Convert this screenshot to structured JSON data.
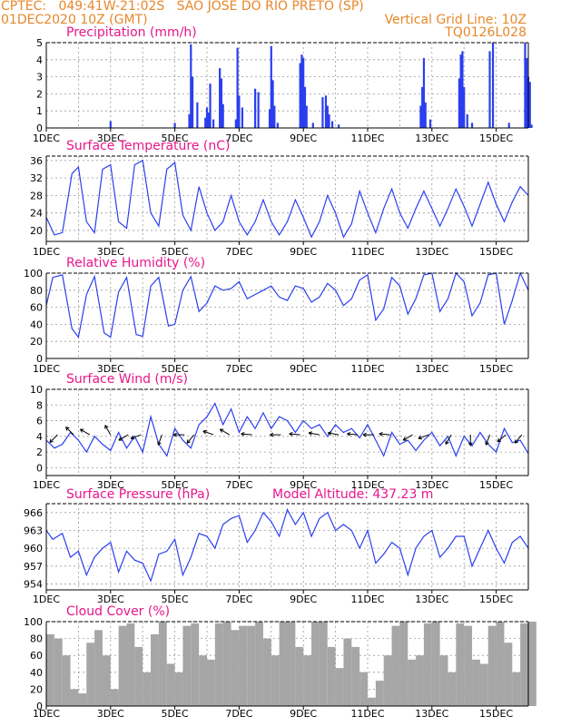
{
  "header": {
    "line1": "CPTEC:   049:41W-21:02S   SAO JOSE DO RIO PRETO (SP)",
    "line2_left": "01DEC2020 10Z (GMT)",
    "line2_right": "Vertical Grid Line: 10Z",
    "line3_right": "TQ0126L028",
    "model_altitude": "Model Altitude: 437.23 m"
  },
  "colors": {
    "header": "#e8872a",
    "title": "#e8168a",
    "series": "#2b3ff0",
    "cloud": "#a6a6a6",
    "grid": "#9a9a9a",
    "arrow": "#000000"
  },
  "x_tick_labels": [
    "1DEC",
    "3DEC",
    "5DEC",
    "7DEC",
    "9DEC",
    "11DEC",
    "13DEC",
    "15DEC"
  ],
  "x_tick_days": [
    0,
    2,
    4,
    6,
    8,
    10,
    12,
    14
  ],
  "x_range_days": [
    0,
    15
  ],
  "chart_data": [
    {
      "type": "bar",
      "title": "Precipitation (mm/h)",
      "ylim": [
        0,
        5
      ],
      "yticks": [
        0,
        1,
        2,
        3,
        4,
        5
      ],
      "x_units": "days since 01DEC2020 10Z",
      "series": [
        {
          "x": [
            2.0,
            4.0,
            4.45,
            4.5,
            4.55,
            4.7,
            4.95,
            5.0,
            5.05,
            5.1,
            5.2,
            5.4,
            5.45,
            5.5,
            5.9,
            5.95,
            6.0,
            6.1,
            6.5,
            6.6,
            6.95,
            7.0,
            7.05,
            7.1,
            7.2,
            7.9,
            7.95,
            8.0,
            8.05,
            8.1,
            8.3,
            8.6,
            8.7,
            8.75,
            8.8,
            8.9,
            9.1,
            11.65,
            11.7,
            11.75,
            11.8,
            11.95,
            12.85,
            12.9,
            12.95,
            13.0,
            13.1,
            13.25,
            13.8,
            13.9,
            14.4,
            14.9,
            14.95,
            15.0,
            15.05,
            15.1
          ],
          "values": [
            0.4,
            0.3,
            0.8,
            4.9,
            3.0,
            1.5,
            0.6,
            1.2,
            0.9,
            2.6,
            0.5,
            3.5,
            2.9,
            1.4,
            0.5,
            4.7,
            1.9,
            1.2,
            2.3,
            2.1,
            1.1,
            4.8,
            2.8,
            1.3,
            0.3,
            3.8,
            4.3,
            4.1,
            2.4,
            1.3,
            0.3,
            1.8,
            1.9,
            1.3,
            0.8,
            0.4,
            0.2,
            1.3,
            2.4,
            4.1,
            1.5,
            0.5,
            2.9,
            4.3,
            4.5,
            2.4,
            0.8,
            0.3,
            4.5,
            5.0,
            0.3,
            5.0,
            4.1,
            3.0,
            2.7,
            0.2
          ]
        }
      ]
    },
    {
      "type": "line",
      "title": "Surface Temperature (nC)",
      "ylim": [
        17.5,
        37
      ],
      "yticks": [
        20,
        24,
        28,
        32,
        36
      ],
      "series": [
        {
          "x": [
            0,
            0.25,
            0.5,
            0.8,
            1.0,
            1.25,
            1.5,
            1.75,
            2.0,
            2.25,
            2.5,
            2.75,
            3.0,
            3.25,
            3.5,
            3.75,
            4.0,
            4.25,
            4.5,
            4.75,
            5.0,
            5.25,
            5.5,
            5.75,
            6.0,
            6.25,
            6.5,
            6.75,
            7.0,
            7.25,
            7.5,
            7.75,
            8.0,
            8.25,
            8.5,
            8.75,
            9.0,
            9.25,
            9.5,
            9.75,
            10.0,
            10.25,
            10.5,
            10.75,
            11.0,
            11.25,
            11.5,
            11.75,
            12.0,
            12.25,
            12.5,
            12.75,
            13.0,
            13.25,
            13.5,
            13.75,
            14.0,
            14.25,
            14.5,
            14.75,
            15.0
          ],
          "values": [
            23,
            19,
            19.5,
            33,
            34.5,
            22,
            19.5,
            34,
            35,
            22,
            20.5,
            35,
            36,
            24,
            21,
            34,
            35.5,
            23.5,
            20,
            30,
            24,
            20,
            22,
            28,
            22,
            19,
            22,
            27,
            22,
            19,
            22,
            27,
            23,
            18.5,
            22,
            28,
            24,
            18.5,
            21.5,
            29,
            24,
            19.5,
            25,
            29.5,
            24,
            20.5,
            25,
            29,
            25,
            21,
            25,
            29.5,
            25.5,
            21,
            26,
            31,
            26,
            22,
            26.5,
            30,
            28
          ]
        }
      ]
    },
    {
      "type": "line",
      "title": "Relative Humidity (%)",
      "ylim": [
        0,
        100
      ],
      "yticks": [
        0,
        20,
        40,
        60,
        80,
        100
      ],
      "series": [
        {
          "x": [
            0,
            0.2,
            0.5,
            0.8,
            1.0,
            1.25,
            1.5,
            1.8,
            2.0,
            2.25,
            2.5,
            2.8,
            3.0,
            3.25,
            3.5,
            3.8,
            4.0,
            4.25,
            4.5,
            4.75,
            5.0,
            5.25,
            5.5,
            5.75,
            6.0,
            6.25,
            6.5,
            6.75,
            7.0,
            7.25,
            7.5,
            7.75,
            8.0,
            8.25,
            8.5,
            8.75,
            9.0,
            9.25,
            9.5,
            9.75,
            10.0,
            10.25,
            10.5,
            10.75,
            11.0,
            11.25,
            11.5,
            11.75,
            12.0,
            12.25,
            12.5,
            12.75,
            13.0,
            13.25,
            13.5,
            13.75,
            14.0,
            14.25,
            14.5,
            14.75,
            15.0
          ],
          "values": [
            62,
            95,
            98,
            35,
            25,
            75,
            96,
            30,
            25,
            78,
            95,
            28,
            26,
            85,
            95,
            38,
            40,
            80,
            96,
            55,
            65,
            85,
            80,
            82,
            90,
            70,
            75,
            80,
            85,
            72,
            68,
            85,
            82,
            66,
            72,
            88,
            80,
            62,
            70,
            92,
            98,
            45,
            58,
            95,
            85,
            52,
            70,
            98,
            100,
            55,
            70,
            100,
            90,
            50,
            65,
            98,
            100,
            40,
            68,
            100,
            80
          ]
        }
      ]
    },
    {
      "type": "line",
      "title": "Surface Wind (m/s)",
      "ylim": [
        -1,
        10
      ],
      "yticks": [
        0,
        2,
        4,
        6,
        8,
        10
      ],
      "series": [
        {
          "x": [
            0,
            0.25,
            0.5,
            0.75,
            1.0,
            1.25,
            1.5,
            1.75,
            2.0,
            2.25,
            2.5,
            2.75,
            3.0,
            3.25,
            3.5,
            3.75,
            4.0,
            4.25,
            4.5,
            4.75,
            5.0,
            5.25,
            5.5,
            5.75,
            6.0,
            6.25,
            6.5,
            6.75,
            7.0,
            7.25,
            7.5,
            7.75,
            8.0,
            8.25,
            8.5,
            8.75,
            9.0,
            9.25,
            9.5,
            9.75,
            10.0,
            10.25,
            10.5,
            10.75,
            11.0,
            11.25,
            11.5,
            11.75,
            12.0,
            12.25,
            12.5,
            12.75,
            13.0,
            13.25,
            13.5,
            13.75,
            14.0,
            14.25,
            14.5,
            14.75,
            15.0
          ],
          "values": [
            3.5,
            2.5,
            3.0,
            4.5,
            3.5,
            2.0,
            4.0,
            3.0,
            2.2,
            4.5,
            2.5,
            4.0,
            2.0,
            6.5,
            3.0,
            1.5,
            5.0,
            3.5,
            2.5,
            5.5,
            6.5,
            8.2,
            5.5,
            7.5,
            4.5,
            6.5,
            5.0,
            7.0,
            5.0,
            6.5,
            6.0,
            4.5,
            6.0,
            5.0,
            5.5,
            4.0,
            5.5,
            4.5,
            5.0,
            3.8,
            5.5,
            3.5,
            1.5,
            4.5,
            3.0,
            3.5,
            2.2,
            3.5,
            4.5,
            2.8,
            4.0,
            1.5,
            4.0,
            2.8,
            4.5,
            3.0,
            2.0,
            5.0,
            3.2,
            3.5,
            1.8
          ]
        }
      ],
      "wind_arrows_days": [
        0.35,
        0.85,
        1.35,
        2.0,
        2.55,
        2.95,
        3.6,
        4.3,
        4.6,
        5.2,
        5.7,
        6.4,
        7.3,
        7.9,
        8.5,
        9.1,
        9.7,
        10.2,
        10.7,
        11.4,
        11.9,
        12.6,
        13.2,
        13.8,
        14.3,
        14.8
      ],
      "wind_arrow_dirs_deg": [
        225,
        135,
        150,
        120,
        210,
        200,
        250,
        180,
        230,
        160,
        150,
        175,
        180,
        175,
        170,
        170,
        175,
        180,
        175,
        210,
        200,
        240,
        270,
        250,
        220,
        230
      ]
    },
    {
      "type": "line",
      "title": "Surface Pressure (hPa)",
      "ylim": [
        953,
        967.5
      ],
      "yticks": [
        954,
        957,
        960,
        963,
        966
      ],
      "series": [
        {
          "x": [
            0,
            0.2,
            0.5,
            0.75,
            1.0,
            1.25,
            1.5,
            1.75,
            2.0,
            2.25,
            2.5,
            2.75,
            3.0,
            3.25,
            3.5,
            3.75,
            4.0,
            4.25,
            4.5,
            4.75,
            5.0,
            5.25,
            5.5,
            5.75,
            6.0,
            6.25,
            6.5,
            6.75,
            7.0,
            7.25,
            7.5,
            7.75,
            8.0,
            8.25,
            8.5,
            8.75,
            9.0,
            9.25,
            9.5,
            9.75,
            10.0,
            10.25,
            10.5,
            10.75,
            11.0,
            11.25,
            11.5,
            11.75,
            12.0,
            12.25,
            12.5,
            12.75,
            13.0,
            13.25,
            13.5,
            13.75,
            14.0,
            14.25,
            14.5,
            14.75,
            15.0
          ],
          "values": [
            963,
            961.5,
            962.5,
            958.5,
            959.5,
            955.5,
            958.5,
            960,
            961,
            956,
            959.5,
            958,
            957.5,
            954.5,
            959,
            959.5,
            961.5,
            955.5,
            958.5,
            962.5,
            962,
            960,
            964,
            965,
            965.5,
            961,
            963,
            966,
            964.5,
            962,
            966.5,
            964,
            966,
            962,
            965,
            966,
            963,
            964,
            963,
            960,
            963,
            957.5,
            959,
            961,
            960,
            955.5,
            960,
            962,
            963,
            958.5,
            960,
            962,
            962,
            957,
            960,
            963,
            960,
            957.5,
            961,
            962,
            960
          ]
        }
      ]
    },
    {
      "type": "bar",
      "title": "Cloud Cover (%)",
      "ylim": [
        0,
        100
      ],
      "yticks": [
        0,
        20,
        40,
        60,
        80,
        100
      ],
      "series": [
        {
          "x": [
            0,
            0.25,
            0.5,
            0.75,
            1.0,
            1.25,
            1.5,
            1.75,
            2.0,
            2.25,
            2.5,
            2.75,
            3.0,
            3.25,
            3.5,
            3.75,
            4.0,
            4.25,
            4.5,
            4.75,
            5.0,
            5.25,
            5.5,
            5.75,
            6.0,
            6.25,
            6.5,
            6.75,
            7.0,
            7.25,
            7.5,
            7.75,
            8.0,
            8.25,
            8.5,
            8.75,
            9.0,
            9.25,
            9.5,
            9.75,
            10.0,
            10.25,
            10.5,
            10.75,
            11.0,
            11.25,
            11.5,
            11.75,
            12.0,
            12.25,
            12.5,
            12.75,
            13.0,
            13.25,
            13.5,
            13.75,
            14.0,
            14.25,
            14.5,
            14.75,
            15.0
          ],
          "values": [
            85,
            80,
            60,
            20,
            15,
            75,
            90,
            60,
            20,
            95,
            98,
            70,
            40,
            85,
            100,
            50,
            40,
            95,
            98,
            60,
            55,
            98,
            100,
            90,
            95,
            95,
            100,
            80,
            60,
            100,
            100,
            70,
            60,
            100,
            100,
            70,
            45,
            80,
            70,
            40,
            10,
            30,
            60,
            95,
            100,
            55,
            60,
            98,
            100,
            60,
            40,
            98,
            95,
            55,
            50,
            95,
            100,
            75,
            40,
            98,
            100
          ]
        }
      ]
    }
  ]
}
